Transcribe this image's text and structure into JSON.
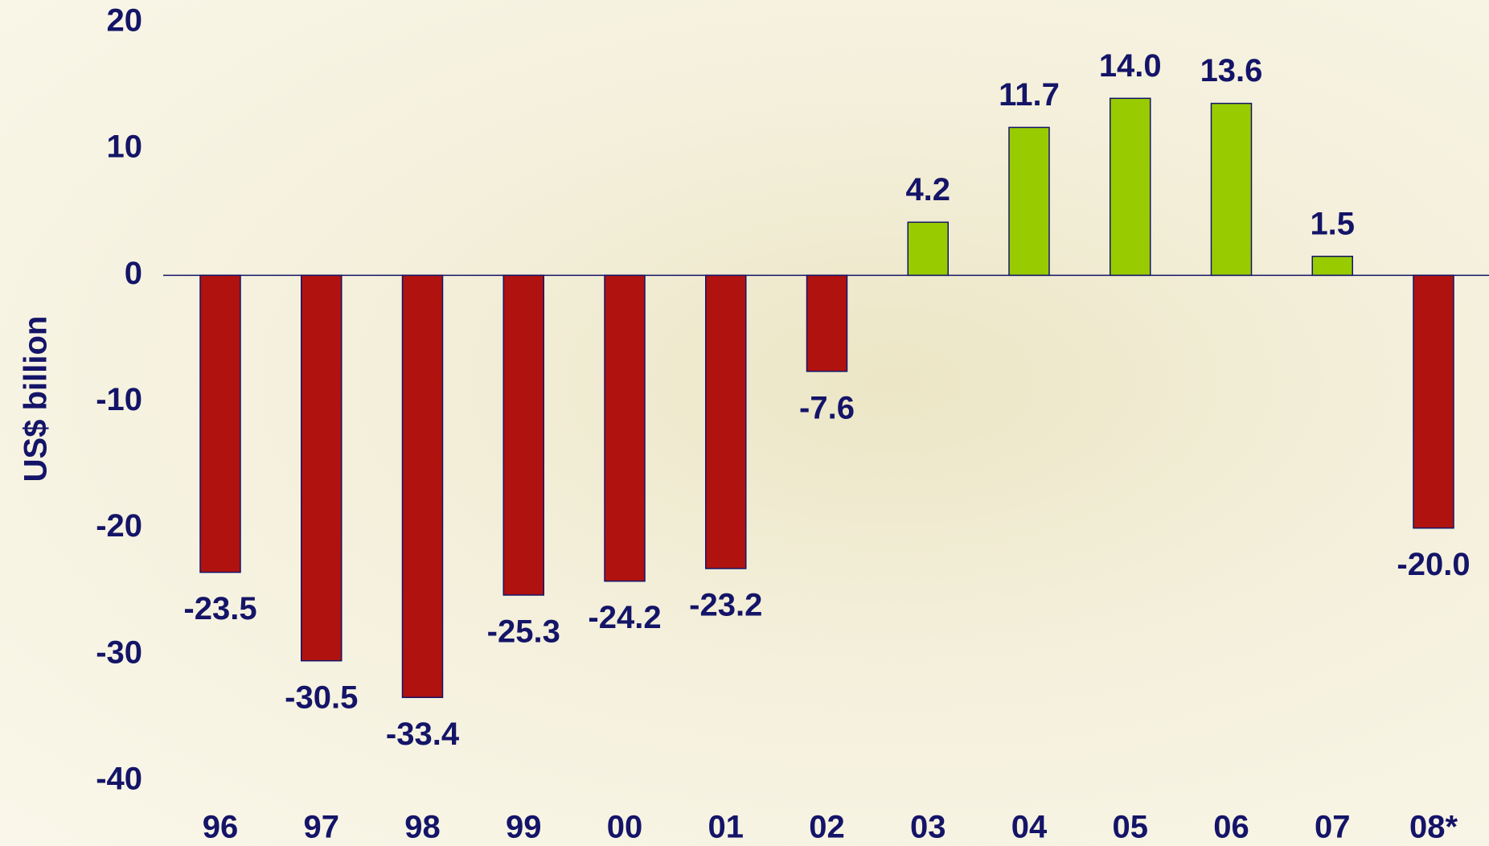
{
  "chart_data": {
    "type": "bar",
    "y_label": "US$ billion",
    "categories": [
      "96",
      "97",
      "98",
      "99",
      "00",
      "01",
      "02",
      "03",
      "04",
      "05",
      "06",
      "07",
      "08*"
    ],
    "values": [
      -23.5,
      -30.5,
      -33.4,
      -25.3,
      -24.2,
      -23.2,
      -7.6,
      4.2,
      11.7,
      14.0,
      13.6,
      1.5,
      -20.0
    ],
    "value_labels": [
      "-23.5",
      "-30.5",
      "-33.4",
      "-25.3",
      "-24.2",
      "-23.2",
      "-7.6",
      "4.2",
      "11.7",
      "14.0",
      "13.6",
      "1.5",
      "-20.0"
    ],
    "colors": [
      "#b0120f",
      "#b0120f",
      "#b0120f",
      "#b0120f",
      "#b0120f",
      "#b0120f",
      "#b0120f",
      "#99cc00",
      "#99cc00",
      "#99cc00",
      "#99cc00",
      "#99cc00",
      "#b0120f"
    ],
    "ylim": [
      -40,
      20
    ],
    "yticks": [
      -40,
      -30,
      -20,
      -10,
      0,
      10,
      20
    ],
    "grid": false
  }
}
